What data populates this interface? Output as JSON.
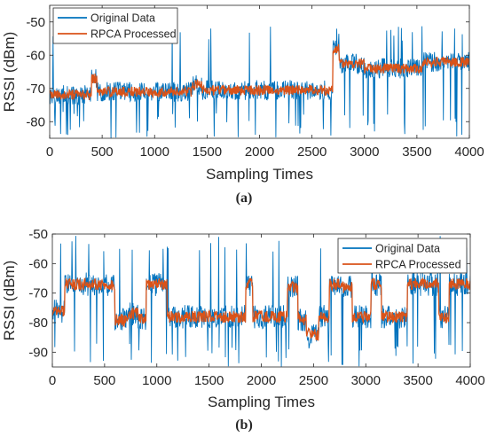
{
  "chart_data": [
    {
      "type": "line",
      "panel_label": "(a)",
      "xlabel": "Sampling Times",
      "ylabel": "RSSI (dBm)",
      "xlim": [
        0,
        4000
      ],
      "ylim": [
        -85,
        -45
      ],
      "xticks": [
        0,
        500,
        1000,
        1500,
        2000,
        2500,
        3000,
        3500,
        4000
      ],
      "yticks": [
        -80,
        -70,
        -60,
        -50
      ],
      "grid": false,
      "legend_position": "top-left",
      "series": [
        {
          "name": "Original Data",
          "color": "#0072BD",
          "baseline_segments": [
            [
              0,
              400,
              -72
            ],
            [
              400,
              450,
              -67
            ],
            [
              450,
              1350,
              -71
            ],
            [
              1350,
              1450,
              -69
            ],
            [
              1450,
              2700,
              -70.5
            ],
            [
              2700,
              2760,
              -58
            ],
            [
              2760,
              3000,
              -62.5
            ],
            [
              3000,
              3550,
              -64
            ],
            [
              3550,
              4000,
              -62
            ]
          ],
          "noise_amplitude": 3,
          "dropout_min": -85,
          "spike_max": -50
        },
        {
          "name": "RPCA Processed",
          "color": "#D95319",
          "baseline_segments": [
            [
              0,
              400,
              -72
            ],
            [
              400,
              450,
              -67
            ],
            [
              450,
              1350,
              -71
            ],
            [
              1350,
              1450,
              -69
            ],
            [
              1450,
              2700,
              -70.5
            ],
            [
              2700,
              2760,
              -58
            ],
            [
              2760,
              3000,
              -62.5
            ],
            [
              3000,
              3550,
              -64
            ],
            [
              3550,
              4000,
              -62
            ]
          ],
          "noise_amplitude": 1.5
        }
      ]
    },
    {
      "type": "line",
      "panel_label": "(b)",
      "xlabel": "Sampling Times",
      "ylabel": "RSSI (dBm)",
      "xlim": [
        0,
        4000
      ],
      "ylim": [
        -95,
        -50
      ],
      "xticks": [
        0,
        500,
        1000,
        1500,
        2000,
        2500,
        3000,
        3500,
        4000
      ],
      "yticks": [
        -90,
        -80,
        -70,
        -60,
        -50
      ],
      "grid": false,
      "legend_position": "top-right",
      "series": [
        {
          "name": "Original Data",
          "color": "#0072BD",
          "baseline_segments": [
            [
              0,
              120,
              -76
            ],
            [
              120,
              600,
              -67
            ],
            [
              600,
              720,
              -79
            ],
            [
              720,
              820,
              -77
            ],
            [
              820,
              900,
              -79
            ],
            [
              900,
              1100,
              -67
            ],
            [
              1100,
              1850,
              -78
            ],
            [
              1850,
              1920,
              -67
            ],
            [
              1920,
              2250,
              -78
            ],
            [
              2250,
              2350,
              -68
            ],
            [
              2350,
              2430,
              -79
            ],
            [
              2430,
              2550,
              -84
            ],
            [
              2550,
              2650,
              -78
            ],
            [
              2650,
              2750,
              -67
            ],
            [
              2750,
              2870,
              -68
            ],
            [
              2870,
              3050,
              -78
            ],
            [
              3050,
              3150,
              -67
            ],
            [
              3150,
              3400,
              -78
            ],
            [
              3400,
              3700,
              -67
            ],
            [
              3700,
              3800,
              -78
            ],
            [
              3800,
              4000,
              -67
            ]
          ],
          "noise_amplitude": 4,
          "dropout_min": -95,
          "spike_max": -50
        },
        {
          "name": "RPCA Processed",
          "color": "#D95319",
          "baseline_segments": [
            [
              0,
              120,
              -76
            ],
            [
              120,
              600,
              -67
            ],
            [
              600,
              720,
              -79
            ],
            [
              720,
              820,
              -77
            ],
            [
              820,
              900,
              -79
            ],
            [
              900,
              1100,
              -67
            ],
            [
              1100,
              1850,
              -78
            ],
            [
              1850,
              1920,
              -67
            ],
            [
              1920,
              2250,
              -78
            ],
            [
              2250,
              2350,
              -68
            ],
            [
              2350,
              2430,
              -79
            ],
            [
              2430,
              2550,
              -84
            ],
            [
              2550,
              2650,
              -78
            ],
            [
              2650,
              2750,
              -67
            ],
            [
              2750,
              2870,
              -68
            ],
            [
              2870,
              3050,
              -78
            ],
            [
              3050,
              3150,
              -67
            ],
            [
              3150,
              3400,
              -78
            ],
            [
              3400,
              3700,
              -67
            ],
            [
              3700,
              3800,
              -78
            ],
            [
              3800,
              4000,
              -67
            ]
          ],
          "noise_amplitude": 2
        }
      ]
    }
  ]
}
